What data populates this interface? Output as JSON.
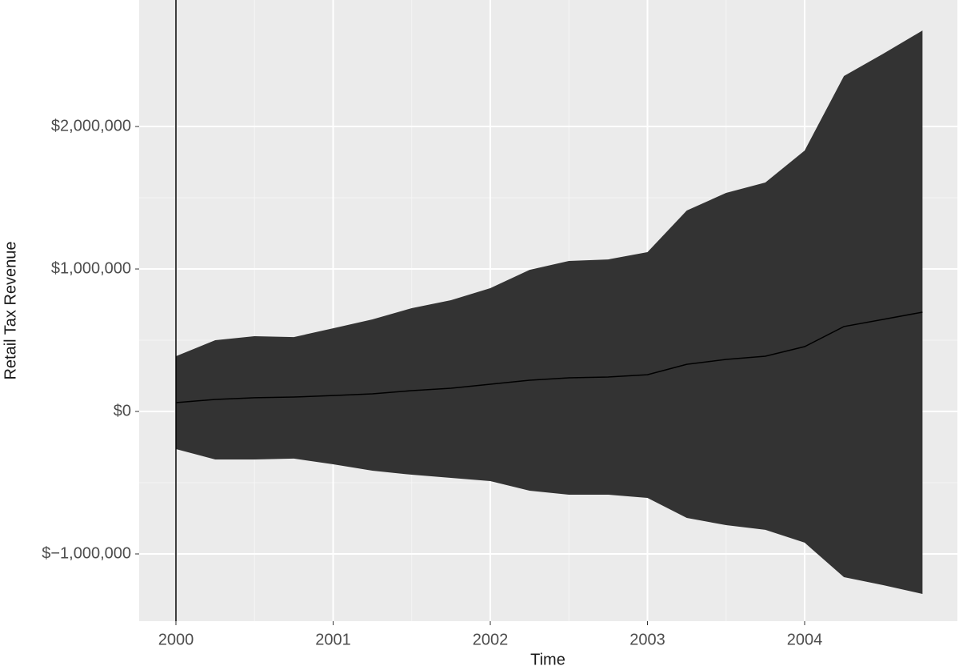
{
  "chart_data": {
    "type": "ribbon",
    "x_label": "Time",
    "y_label": "Retail Tax Revenue",
    "x": [
      2000,
      2000.25,
      2000.5,
      2000.75,
      2001,
      2001.25,
      2001.5,
      2001.75,
      2002,
      2002.25,
      2002.5,
      2002.75,
      2003,
      2003.25,
      2003.5,
      2003.75,
      2004,
      2004.25,
      2004.5,
      2004.75
    ],
    "values": [
      62000,
      84000,
      96000,
      101000,
      112000,
      124000,
      146000,
      163000,
      191000,
      219000,
      236000,
      242000,
      258000,
      331000,
      365000,
      388000,
      455000,
      596000,
      646000,
      697000
    ],
    "upper": [
      388000,
      500000,
      528000,
      522000,
      584000,
      646000,
      725000,
      781000,
      865000,
      994000,
      1056000,
      1067000,
      1118000,
      1410000,
      1534000,
      1607000,
      1831000,
      2354000,
      2511000,
      2674000
    ],
    "lower": [
      -264000,
      -337000,
      -337000,
      -331000,
      -371000,
      -416000,
      -444000,
      -466000,
      -489000,
      -556000,
      -584000,
      -584000,
      -607000,
      -747000,
      -798000,
      -831000,
      -921000,
      -1163000,
      -1219000,
      -1281000
    ],
    "ribbon_color": "#333333",
    "line_color": "#000000",
    "vline": 2000,
    "xlim": [
      1999.766,
      2004.972
    ],
    "ylim": [
      -1472000,
      2888000
    ],
    "xticks": [
      2000,
      2001,
      2002,
      2003,
      2004
    ],
    "yticks": [
      {
        "value": -1000000,
        "label": "$−1,000,000"
      },
      {
        "value": 0,
        "label": "$0"
      },
      {
        "value": 1000000,
        "label": "$1,000,000"
      },
      {
        "value": 2000000,
        "label": "$2,000,000"
      }
    ],
    "grid": true
  }
}
